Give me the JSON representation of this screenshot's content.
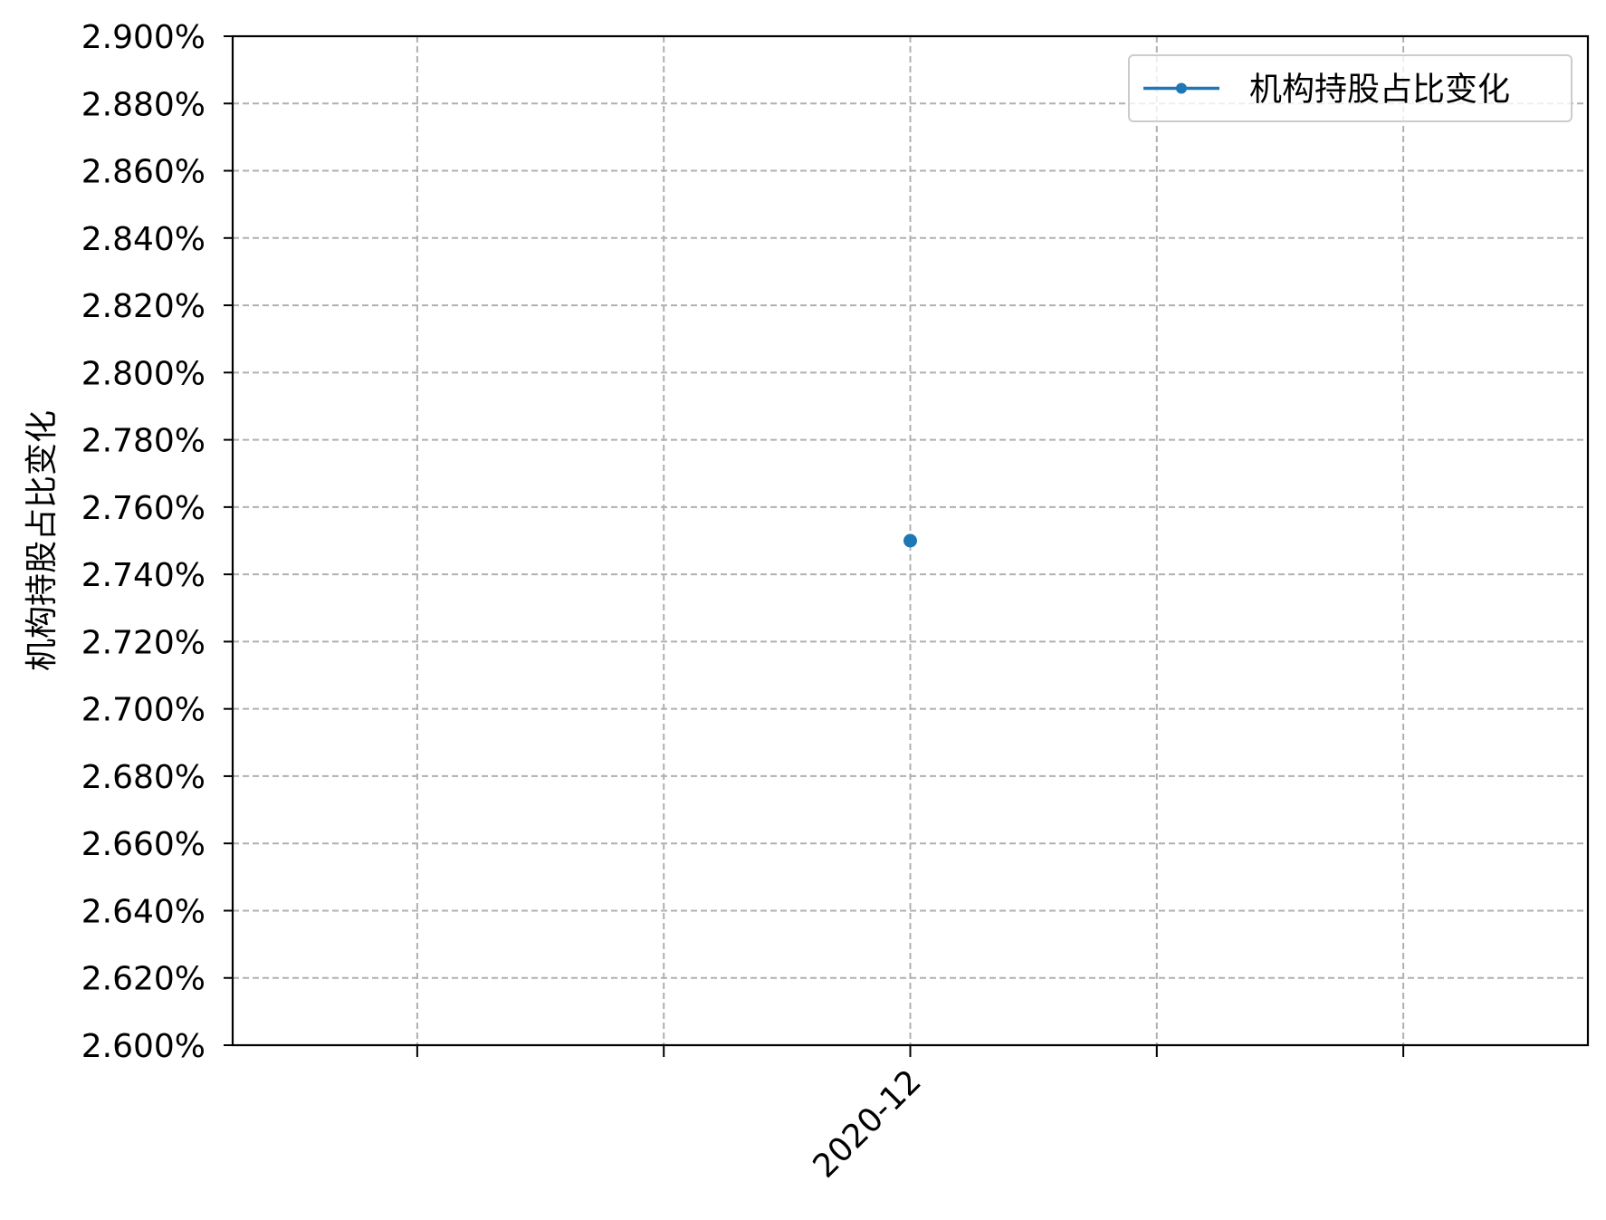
{
  "chart_data": {
    "type": "line",
    "title": "",
    "xlabel": "",
    "ylabel": "机构持股占比变化",
    "x_ticks": [
      "",
      "",
      "2020-12",
      "",
      ""
    ],
    "x": [
      "2020-12"
    ],
    "series": [
      {
        "name": "机构持股占比变化",
        "values": [
          2.75
        ],
        "color": "#1f77b4",
        "marker": "circle"
      }
    ],
    "ylim": [
      2.6,
      2.9
    ],
    "y_ticks": [
      2.6,
      2.62,
      2.64,
      2.66,
      2.68,
      2.7,
      2.72,
      2.74,
      2.76,
      2.78,
      2.8,
      2.82,
      2.84,
      2.86,
      2.88,
      2.9
    ],
    "y_tick_labels": [
      "2.600%",
      "2.620%",
      "2.640%",
      "2.660%",
      "2.680%",
      "2.700%",
      "2.720%",
      "2.740%",
      "2.760%",
      "2.780%",
      "2.800%",
      "2.820%",
      "2.840%",
      "2.860%",
      "2.880%",
      "2.900%"
    ],
    "y_unit": "%",
    "grid": true,
    "grid_style": "dashed",
    "grid_color": "#b0b0b0",
    "legend_position": "top-right"
  }
}
